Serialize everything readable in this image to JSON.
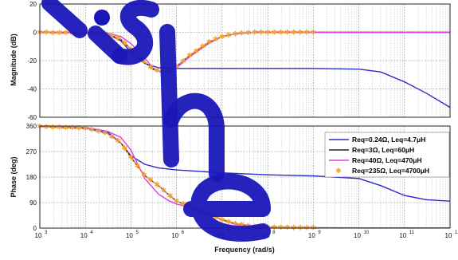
{
  "colors": {
    "watermark": "#1a17b8"
  },
  "watermark": {
    "text": "lishe"
  },
  "chart_data": [
    {
      "type": "line",
      "ylabel": "Magnitude (dB)",
      "xscale": "log",
      "xlim": [
        1000,
        1000000000000
      ],
      "ylim": [
        -60,
        20
      ],
      "yticks": [
        "20",
        "0",
        "-20",
        "-40",
        "-60"
      ],
      "grid": true,
      "series": [
        {
          "name": "Req=0.24Ω, Leq=4.7μH",
          "color": "#2a2acc",
          "x": [
            1000,
            10000,
            30000,
            60000,
            100000,
            200000,
            400000,
            1000000,
            10000000,
            1000000000,
            10000000000,
            30000000000,
            100000000000,
            300000000000,
            1000000000000
          ],
          "y": [
            0,
            0,
            -1,
            -6,
            -14,
            -22,
            -25,
            -25.5,
            -25.5,
            -25.5,
            -26,
            -28,
            -35,
            -43,
            -53
          ]
        },
        {
          "name": "Req=3Ω, Leq=60μH",
          "color": "#222222",
          "x": [
            1000,
            30000,
            60000,
            100000,
            200000,
            300000,
            500000,
            700000,
            1000000,
            2000000,
            5000000,
            10000000,
            20000000,
            50000000,
            100000000,
            1000000000000
          ],
          "y": [
            0,
            -1,
            -5,
            -12,
            -21,
            -26,
            -28,
            -27,
            -24,
            -16,
            -7,
            -3,
            -1,
            0,
            0,
            0
          ]
        },
        {
          "name": "Req=40Ω, Leq=470μH",
          "color": "#e23be3",
          "x": [
            1000,
            30000,
            60000,
            100000,
            200000,
            300000,
            500000,
            700000,
            1000000,
            2000000,
            5000000,
            10000000,
            20000000,
            50000000,
            100000000,
            1000000000000
          ],
          "y": [
            0,
            -0.5,
            -3,
            -8,
            -18,
            -25,
            -29,
            -28,
            -25,
            -17,
            -8,
            -3,
            -1,
            0,
            0,
            0
          ]
        },
        {
          "name": "Req=235Ω, Leq=4700μH",
          "color": "#f0a030",
          "x": [
            1000,
            30000,
            60000,
            100000,
            200000,
            300000,
            500000,
            700000,
            1000000,
            2000000,
            5000000,
            10000000,
            20000000,
            50000000,
            100000000,
            1000000000
          ],
          "y": [
            0,
            -1,
            -5,
            -12,
            -21,
            -26,
            -28,
            -27,
            -24,
            -16,
            -7,
            -3,
            -1,
            0,
            0,
            0
          ]
        }
      ]
    },
    {
      "type": "line",
      "ylabel": "Phase (deg)",
      "xlabel": "Frequency (rad/s)",
      "xscale": "log",
      "xlim": [
        1000,
        1000000000000
      ],
      "ylim": [
        0,
        360
      ],
      "yticks": [
        "360",
        "270",
        "180",
        "90",
        "0"
      ],
      "xticks": [
        "3",
        "4",
        "5",
        "6",
        "7",
        "8",
        "9",
        "10",
        "11",
        "12"
      ],
      "xtick_base": "10",
      "grid": true,
      "legend": "right",
      "series": [
        {
          "name": "Req=0.24Ω, Leq=4.7μH",
          "color": "#2a2acc",
          "x": [
            1000,
            10000,
            30000,
            60000,
            100000,
            200000,
            400000,
            1000000,
            10000000,
            100000000,
            1000000000,
            10000000000,
            30000000000,
            100000000000,
            300000000000,
            1000000000000
          ],
          "y": [
            360,
            355,
            340,
            300,
            255,
            225,
            212,
            205,
            195,
            188,
            184,
            175,
            150,
            115,
            100,
            95
          ]
        },
        {
          "name": "Req=3Ω, Leq=60μH",
          "color": "#222222",
          "x": [
            1000,
            10000,
            30000,
            60000,
            100000,
            200000,
            400000,
            700000,
            1000000,
            2000000,
            5000000,
            10000000,
            20000000,
            50000000,
            100000000,
            1000000000,
            1000000000000
          ],
          "y": [
            358,
            352,
            335,
            300,
            250,
            185,
            150,
            115,
            95,
            75,
            50,
            30,
            15,
            6,
            3,
            1,
            0
          ]
        },
        {
          "name": "Req=40Ω, Leq=470μH",
          "color": "#e23be3",
          "x": [
            1000,
            10000,
            30000,
            60000,
            100000,
            200000,
            400000,
            700000,
            1000000,
            2000000,
            5000000,
            10000000,
            20000000,
            50000000,
            100000000,
            1000000000,
            1000000000000
          ],
          "y": [
            358,
            355,
            342,
            320,
            275,
            175,
            120,
            95,
            85,
            72,
            48,
            28,
            12,
            4,
            2,
            1,
            0
          ]
        },
        {
          "name": "Req=235Ω, Leq=4700μH",
          "color": "#f0a030",
          "x": [
            1000,
            10000,
            30000,
            60000,
            100000,
            200000,
            400000,
            700000,
            1000000,
            2000000,
            5000000,
            10000000,
            20000000,
            50000000,
            100000000,
            1000000000
          ],
          "y": [
            358,
            352,
            335,
            300,
            250,
            185,
            150,
            115,
            95,
            75,
            50,
            30,
            15,
            6,
            3,
            1
          ]
        }
      ]
    }
  ]
}
